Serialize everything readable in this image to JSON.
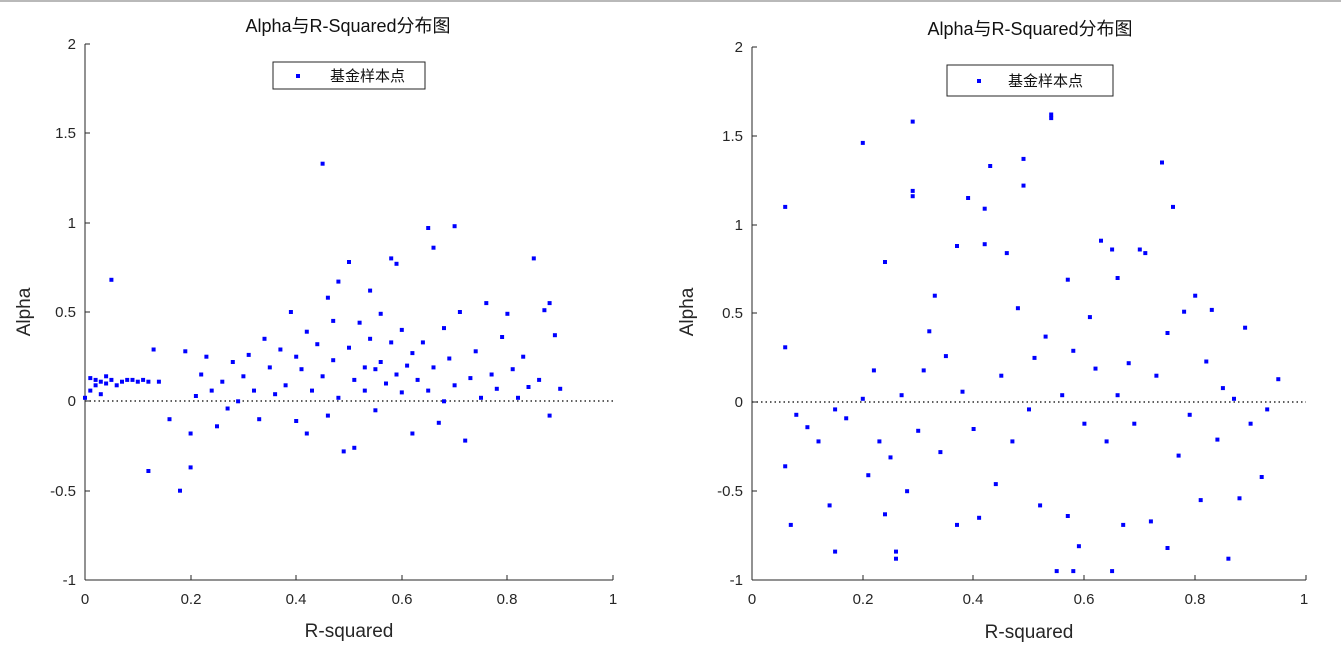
{
  "chart_data": [
    {
      "type": "scatter",
      "title": "Alpha与R-Squared分布图",
      "xlabel": "R-squared",
      "ylabel": "Alpha",
      "xlim": [
        0,
        1
      ],
      "ylim": [
        -1,
        2
      ],
      "xticks": [
        "0",
        "0.2",
        "0.4",
        "0.6",
        "0.8",
        "1"
      ],
      "yticks": [
        "-1",
        "-0.5",
        "0",
        "0.5",
        "1",
        "1.5",
        "2"
      ],
      "legend": {
        "label": "基金样本点",
        "position": "top"
      },
      "reference_line": {
        "y": 0,
        "style": "dotted"
      },
      "marker_color": "#0000ff",
      "series": [
        {
          "name": "基金样本点",
          "points": [
            [
              0.0,
              0.02
            ],
            [
              0.01,
              0.13
            ],
            [
              0.01,
              0.06
            ],
            [
              0.02,
              0.09
            ],
            [
              0.02,
              0.12
            ],
            [
              0.03,
              0.11
            ],
            [
              0.03,
              0.04
            ],
            [
              0.04,
              0.14
            ],
            [
              0.04,
              0.1
            ],
            [
              0.05,
              0.68
            ],
            [
              0.05,
              0.12
            ],
            [
              0.06,
              0.09
            ],
            [
              0.07,
              0.11
            ],
            [
              0.08,
              0.12
            ],
            [
              0.09,
              0.12
            ],
            [
              0.1,
              0.11
            ],
            [
              0.11,
              0.12
            ],
            [
              0.12,
              0.11
            ],
            [
              0.12,
              -0.39
            ],
            [
              0.13,
              0.29
            ],
            [
              0.14,
              0.11
            ],
            [
              0.16,
              -0.1
            ],
            [
              0.18,
              -0.5
            ],
            [
              0.19,
              0.28
            ],
            [
              0.2,
              -0.18
            ],
            [
              0.2,
              -0.37
            ],
            [
              0.21,
              0.03
            ],
            [
              0.22,
              0.15
            ],
            [
              0.23,
              0.25
            ],
            [
              0.24,
              0.06
            ],
            [
              0.25,
              -0.14
            ],
            [
              0.26,
              0.11
            ],
            [
              0.27,
              -0.04
            ],
            [
              0.28,
              0.22
            ],
            [
              0.29,
              0.0
            ],
            [
              0.3,
              0.14
            ],
            [
              0.31,
              0.26
            ],
            [
              0.32,
              0.06
            ],
            [
              0.33,
              -0.1
            ],
            [
              0.34,
              0.35
            ],
            [
              0.35,
              0.19
            ],
            [
              0.36,
              0.04
            ],
            [
              0.37,
              0.29
            ],
            [
              0.38,
              0.09
            ],
            [
              0.39,
              0.5
            ],
            [
              0.4,
              0.25
            ],
            [
              0.4,
              -0.11
            ],
            [
              0.41,
              0.18
            ],
            [
              0.42,
              0.39
            ],
            [
              0.42,
              -0.18
            ],
            [
              0.43,
              0.06
            ],
            [
              0.44,
              0.32
            ],
            [
              0.45,
              1.33
            ],
            [
              0.45,
              0.14
            ],
            [
              0.46,
              0.58
            ],
            [
              0.46,
              -0.08
            ],
            [
              0.47,
              0.45
            ],
            [
              0.47,
              0.23
            ],
            [
              0.48,
              0.67
            ],
            [
              0.48,
              0.02
            ],
            [
              0.49,
              -0.28
            ],
            [
              0.5,
              0.78
            ],
            [
              0.5,
              0.3
            ],
            [
              0.51,
              0.12
            ],
            [
              0.51,
              -0.26
            ],
            [
              0.52,
              0.44
            ],
            [
              0.53,
              0.19
            ],
            [
              0.53,
              0.06
            ],
            [
              0.54,
              0.62
            ],
            [
              0.54,
              0.35
            ],
            [
              0.55,
              0.18
            ],
            [
              0.55,
              -0.05
            ],
            [
              0.56,
              0.49
            ],
            [
              0.56,
              0.22
            ],
            [
              0.57,
              0.1
            ],
            [
              0.58,
              0.8
            ],
            [
              0.58,
              0.33
            ],
            [
              0.59,
              0.77
            ],
            [
              0.59,
              0.15
            ],
            [
              0.6,
              0.4
            ],
            [
              0.6,
              0.05
            ],
            [
              0.61,
              0.2
            ],
            [
              0.62,
              -0.18
            ],
            [
              0.62,
              0.27
            ],
            [
              0.63,
              0.12
            ],
            [
              0.64,
              0.33
            ],
            [
              0.65,
              0.97
            ],
            [
              0.65,
              0.06
            ],
            [
              0.66,
              0.86
            ],
            [
              0.66,
              0.19
            ],
            [
              0.67,
              -0.12
            ],
            [
              0.68,
              0.41
            ],
            [
              0.68,
              0.0
            ],
            [
              0.69,
              0.24
            ],
            [
              0.7,
              0.98
            ],
            [
              0.7,
              0.09
            ],
            [
              0.71,
              0.5
            ],
            [
              0.72,
              -0.22
            ],
            [
              0.73,
              0.13
            ],
            [
              0.74,
              0.28
            ],
            [
              0.75,
              0.02
            ],
            [
              0.76,
              0.55
            ],
            [
              0.77,
              0.15
            ],
            [
              0.78,
              0.07
            ],
            [
              0.79,
              0.36
            ],
            [
              0.8,
              0.49
            ],
            [
              0.81,
              0.18
            ],
            [
              0.82,
              0.02
            ],
            [
              0.83,
              0.25
            ],
            [
              0.84,
              0.08
            ],
            [
              0.85,
              0.8
            ],
            [
              0.86,
              0.12
            ],
            [
              0.87,
              0.51
            ],
            [
              0.88,
              0.55
            ],
            [
              0.88,
              -0.08
            ],
            [
              0.89,
              0.37
            ],
            [
              0.9,
              0.07
            ]
          ]
        }
      ]
    },
    {
      "type": "scatter",
      "title": "Alpha与R-Squared分布图",
      "xlabel": "R-squared",
      "ylabel": "Alpha",
      "xlim": [
        0,
        1
      ],
      "ylim": [
        -1,
        2
      ],
      "xticks": [
        "0",
        "0.2",
        "0.4",
        "0.6",
        "0.8",
        "1"
      ],
      "yticks": [
        "-1",
        "-0.5",
        "0",
        "0.5",
        "1",
        "1.5",
        "2"
      ],
      "legend": {
        "label": "基金样本点",
        "position": "top"
      },
      "reference_line": {
        "y": 0,
        "style": "dotted"
      },
      "marker_color": "#0000ff",
      "series": [
        {
          "name": "基金样本点",
          "points": [
            [
              0.06,
              1.1
            ],
            [
              0.06,
              0.31
            ],
            [
              0.06,
              -0.36
            ],
            [
              0.07,
              -0.69
            ],
            [
              0.08,
              -0.07
            ],
            [
              0.1,
              -0.14
            ],
            [
              0.12,
              -0.22
            ],
            [
              0.14,
              -0.58
            ],
            [
              0.15,
              -0.84
            ],
            [
              0.15,
              -0.04
            ],
            [
              0.17,
              -0.09
            ],
            [
              0.2,
              1.46
            ],
            [
              0.2,
              0.02
            ],
            [
              0.21,
              -0.41
            ],
            [
              0.22,
              0.18
            ],
            [
              0.23,
              -0.22
            ],
            [
              0.24,
              -0.63
            ],
            [
              0.24,
              0.79
            ],
            [
              0.25,
              -0.31
            ],
            [
              0.26,
              -0.84
            ],
            [
              0.26,
              -0.88
            ],
            [
              0.27,
              0.04
            ],
            [
              0.28,
              -0.5
            ],
            [
              0.29,
              1.58
            ],
            [
              0.29,
              1.19
            ],
            [
              0.29,
              1.16
            ],
            [
              0.3,
              -0.16
            ],
            [
              0.31,
              0.18
            ],
            [
              0.32,
              0.4
            ],
            [
              0.33,
              0.6
            ],
            [
              0.34,
              -0.28
            ],
            [
              0.35,
              0.26
            ],
            [
              0.37,
              -0.69
            ],
            [
              0.37,
              0.88
            ],
            [
              0.38,
              0.06
            ],
            [
              0.39,
              1.15
            ],
            [
              0.4,
              -0.15
            ],
            [
              0.41,
              -0.65
            ],
            [
              0.42,
              1.09
            ],
            [
              0.42,
              0.89
            ],
            [
              0.43,
              1.33
            ],
            [
              0.44,
              -0.46
            ],
            [
              0.45,
              0.15
            ],
            [
              0.46,
              0.84
            ],
            [
              0.47,
              -0.22
            ],
            [
              0.48,
              0.53
            ],
            [
              0.49,
              1.37
            ],
            [
              0.49,
              1.22
            ],
            [
              0.5,
              -0.04
            ],
            [
              0.51,
              0.25
            ],
            [
              0.52,
              -0.58
            ],
            [
              0.53,
              0.37
            ],
            [
              0.54,
              1.62
            ],
            [
              0.54,
              1.6
            ],
            [
              0.55,
              -0.95
            ],
            [
              0.56,
              0.04
            ],
            [
              0.57,
              0.69
            ],
            [
              0.57,
              -0.64
            ],
            [
              0.58,
              -0.95
            ],
            [
              0.58,
              0.29
            ],
            [
              0.59,
              -0.81
            ],
            [
              0.6,
              -0.12
            ],
            [
              0.61,
              0.48
            ],
            [
              0.62,
              0.19
            ],
            [
              0.63,
              0.91
            ],
            [
              0.64,
              -0.22
            ],
            [
              0.65,
              0.86
            ],
            [
              0.65,
              -0.95
            ],
            [
              0.66,
              0.7
            ],
            [
              0.66,
              0.04
            ],
            [
              0.67,
              -0.69
            ],
            [
              0.68,
              0.22
            ],
            [
              0.69,
              -0.12
            ],
            [
              0.7,
              0.86
            ],
            [
              0.71,
              0.84
            ],
            [
              0.72,
              -0.67
            ],
            [
              0.73,
              0.15
            ],
            [
              0.74,
              1.35
            ],
            [
              0.75,
              -0.82
            ],
            [
              0.75,
              0.39
            ],
            [
              0.76,
              1.1
            ],
            [
              0.77,
              -0.3
            ],
            [
              0.78,
              0.51
            ],
            [
              0.79,
              -0.07
            ],
            [
              0.8,
              0.6
            ],
            [
              0.81,
              -0.55
            ],
            [
              0.82,
              0.23
            ],
            [
              0.83,
              0.52
            ],
            [
              0.84,
              -0.21
            ],
            [
              0.85,
              0.08
            ],
            [
              0.86,
              -0.88
            ],
            [
              0.87,
              0.02
            ],
            [
              0.88,
              -0.54
            ],
            [
              0.89,
              0.42
            ],
            [
              0.9,
              -0.12
            ],
            [
              0.92,
              -0.42
            ],
            [
              0.93,
              -0.04
            ],
            [
              0.95,
              0.13
            ]
          ]
        }
      ]
    }
  ]
}
